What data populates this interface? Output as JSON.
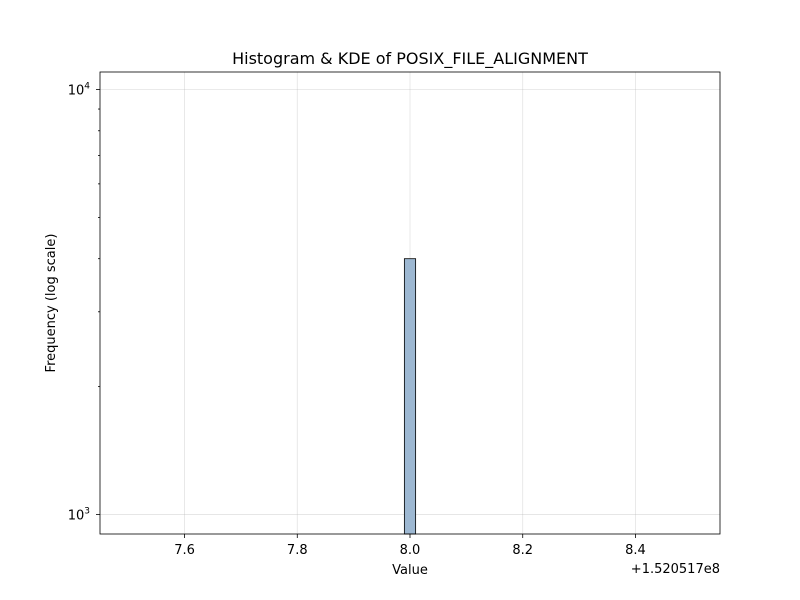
{
  "chart_data": {
    "type": "bar",
    "title": "Histogram & KDE of POSIX_FILE_ALIGNMENT",
    "xlabel": "Value",
    "ylabel": "Frequency (log scale)",
    "x_offset_label": "+1.520517e8",
    "xlim": [
      7.45,
      8.55
    ],
    "ylim": [
      900,
      11000
    ],
    "yscale": "log",
    "grid": true,
    "x_ticks": [
      {
        "value": 7.6,
        "label": "7.6"
      },
      {
        "value": 7.8,
        "label": "7.8"
      },
      {
        "value": 8.0,
        "label": "8.0"
      },
      {
        "value": 8.2,
        "label": "8.2"
      },
      {
        "value": 8.4,
        "label": "8.4"
      }
    ],
    "y_ticks": [
      {
        "value": 1000,
        "base": "10",
        "exp": "3"
      },
      {
        "value": 10000,
        "base": "10",
        "exp": "4"
      }
    ],
    "bins": [
      {
        "x0": 7.99,
        "x1": 8.01,
        "value": 4000
      }
    ],
    "colors": {
      "bar_fill": "#9db8d2",
      "bar_edge": "#000000"
    }
  }
}
